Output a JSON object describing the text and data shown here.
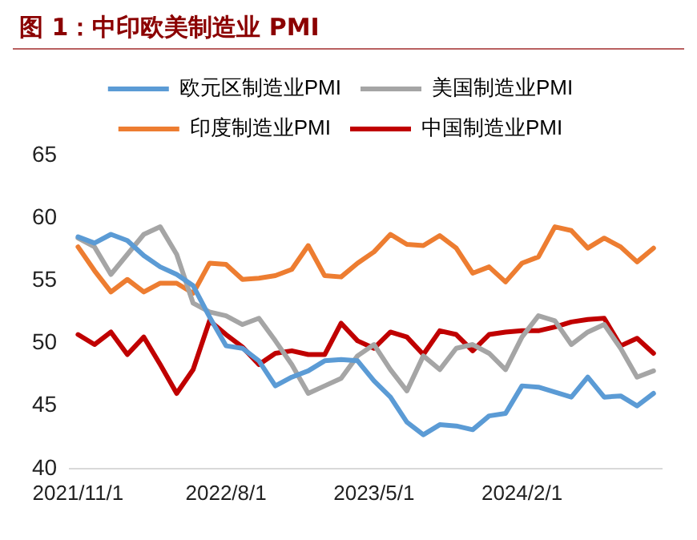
{
  "chart_data": {
    "type": "line",
    "title": "图 1：中印欧美制造业 PMI",
    "categories": [
      "2021/11/1",
      null,
      null,
      null,
      null,
      null,
      null,
      null,
      null,
      "2022/8/1",
      null,
      null,
      null,
      null,
      null,
      null,
      null,
      null,
      "2023/5/1",
      null,
      null,
      null,
      null,
      null,
      null,
      null,
      null,
      "2024/2/1",
      null,
      null,
      null,
      null,
      null,
      null,
      null,
      null
    ],
    "series": [
      {
        "name": "欧元区制造业PMI",
        "color": "#5b9bd5",
        "values": [
          58.5,
          58,
          58.7,
          58.2,
          57,
          56.1,
          55.5,
          54.6,
          52.1,
          49.8,
          49.6,
          48.6,
          46.6,
          47.3,
          47.8,
          48.6,
          48.7,
          48.6,
          47,
          45.7,
          43.7,
          42.7,
          43.5,
          43.4,
          43.1,
          44.2,
          44.4,
          46.6,
          46.5,
          46.1,
          45.7,
          47.3,
          45.7,
          45.8,
          45,
          46
        ]
      },
      {
        "name": "美国制造业PMI",
        "color": "#a5a5a5",
        "values": [
          58.4,
          57.7,
          55.5,
          57.1,
          58.7,
          59.3,
          57.1,
          53.2,
          52.5,
          52.2,
          51.5,
          52,
          50.2,
          48.3,
          46,
          46.6,
          47.2,
          49,
          49.9,
          47.9,
          46.2,
          49,
          47.9,
          49.6,
          49.9,
          49.2,
          47.9,
          50.5,
          52.2,
          51.8,
          49.9,
          50.9,
          51.5,
          49.6,
          47.3,
          47.8
        ]
      },
      {
        "name": "印度制造业PMI",
        "color": "#ed7d31",
        "values": [
          57.7,
          55.8,
          54.1,
          55.1,
          54.1,
          54.8,
          54.8,
          54,
          56.4,
          56.3,
          55.1,
          55.2,
          55.4,
          55.9,
          57.8,
          55.4,
          55.3,
          56.4,
          57.3,
          58.7,
          57.9,
          57.8,
          58.6,
          57.6,
          55.6,
          56.1,
          54.9,
          56.4,
          56.9,
          59.3,
          59,
          57.6,
          58.4,
          57.7,
          56.5,
          57.6
        ]
      },
      {
        "name": "中国制造业PMI",
        "color": "#c00000",
        "values": [
          50.7,
          49.9,
          50.9,
          49.1,
          50.5,
          48.3,
          46,
          47.9,
          51.8,
          50.7,
          49.7,
          48.3,
          49.2,
          49.4,
          49.1,
          49.1,
          51.6,
          50.2,
          49.6,
          50.9,
          50.5,
          49.1,
          51,
          50.7,
          49.4,
          50.7,
          50.9,
          51,
          51,
          51.3,
          51.7,
          51.9,
          52,
          49.8,
          50.4,
          49.2
        ]
      }
    ],
    "ylim": [
      40,
      65
    ],
    "yticks": [
      40,
      45,
      50,
      55,
      60,
      65
    ],
    "grid": false,
    "legend": "top",
    "marker": "none",
    "line_style": "solid"
  }
}
